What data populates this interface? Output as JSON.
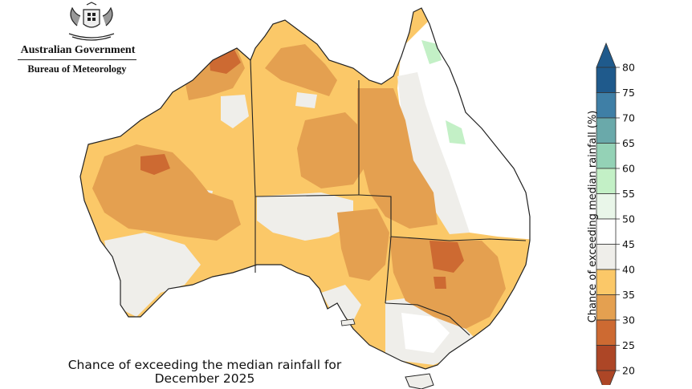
{
  "header": {
    "government": "Australian Government",
    "agency": "Bureau of Meteorology"
  },
  "caption": {
    "line1": "Chance of exceeding the median rainfall for",
    "line2": "December 2025"
  },
  "legend": {
    "title": "Chance of exceeding median rainfall (%)",
    "ticks": [
      "80",
      "75",
      "70",
      "65",
      "60",
      "55",
      "50",
      "45",
      "40",
      "35",
      "30",
      "25",
      "20"
    ],
    "bins": [
      {
        "color": "#1f5a8c"
      },
      {
        "color": "#3f7fa6"
      },
      {
        "color": "#6aa9aa"
      },
      {
        "color": "#94d2b6"
      },
      {
        "color": "#c3f0c6"
      },
      {
        "color": "#e9f6e9"
      },
      {
        "color": "#ffffff"
      },
      {
        "color": "#efeeea"
      },
      {
        "color": "#fbc868"
      },
      {
        "color": "#e4a050"
      },
      {
        "color": "#cd6a32"
      },
      {
        "color": "#ad4626"
      }
    ],
    "top_arrow_color": "#1f5a8c",
    "bottom_arrow_color": "#ad4626"
  },
  "map_colors": {
    "lt40": "#fbc868",
    "lt35": "#e4a050",
    "lt30": "#cd6a32",
    "neutral": "#efeeea",
    "above": "#ffffff",
    "green": "#c3f0c6"
  }
}
